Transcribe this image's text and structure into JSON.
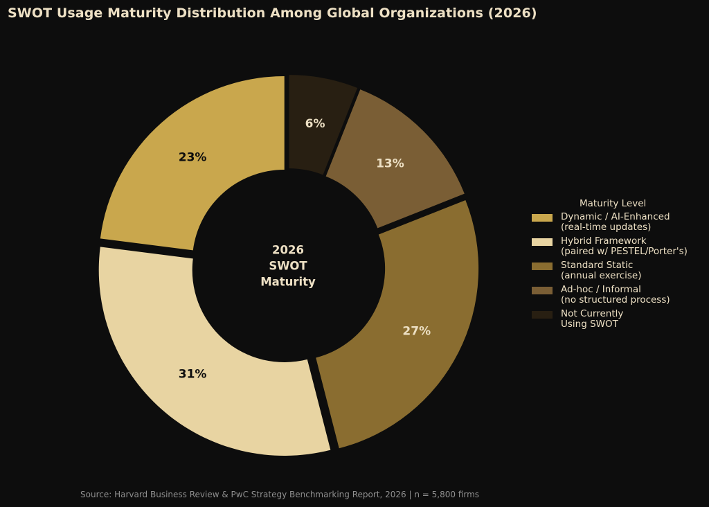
{
  "chart_data": {
    "type": "pie",
    "title": "SWOT Usage Maturity Distribution Among Global Organizations (2026)",
    "center_label": "2026\nSWOT\nMaturity",
    "legend_title": "Maturity Level",
    "legend_position": "right",
    "slices": [
      {
        "label": "Dynamic / AI-Enhanced\n(real-time updates)",
        "value": 23,
        "display": "23%",
        "color": "#c9a74d",
        "label_color": "#0d0d0d"
      },
      {
        "label": "Hybrid Framework\n(paired w/ PESTEL/Porter's)",
        "value": 31,
        "display": "31%",
        "color": "#e8d4a2",
        "label_color": "#0d0d0d"
      },
      {
        "label": "Standard Static\n(annual exercise)",
        "value": 27,
        "display": "27%",
        "color": "#8a6d30",
        "label_color": "#ede0c4"
      },
      {
        "label": "Ad-hoc / Informal\n(no structured process)",
        "value": 13,
        "display": "13%",
        "color": "#7a5e35",
        "label_color": "#ede0c4"
      },
      {
        "label": "Not Currently\nUsing SWOT",
        "value": 6,
        "display": "6%",
        "color": "#281f12",
        "label_color": "#ede0c4"
      }
    ],
    "source": "Source: Harvard Business Review & PwC Strategy Benchmarking Report, 2026  |  n = 5,800 firms"
  }
}
